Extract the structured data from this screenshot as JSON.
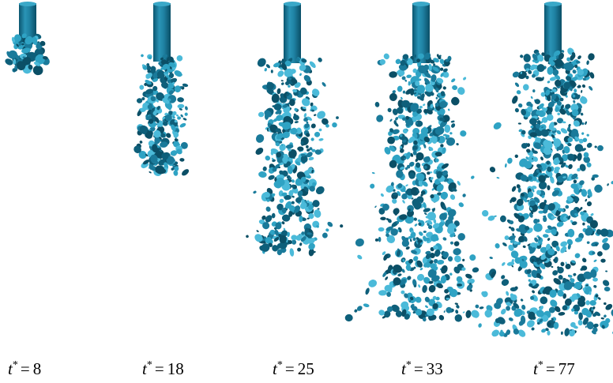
{
  "panels": [
    {
      "symbol": "t",
      "superscript": "*",
      "equals": "=",
      "value": 8
    },
    {
      "symbol": "t",
      "superscript": "*",
      "equals": "=",
      "value": 18
    },
    {
      "symbol": "t",
      "superscript": "*",
      "equals": "=",
      "value": 25
    },
    {
      "symbol": "t",
      "superscript": "*",
      "equals": "=",
      "value": 33
    },
    {
      "symbol": "t",
      "superscript": "*",
      "equals": "=",
      "value": 77
    }
  ]
}
